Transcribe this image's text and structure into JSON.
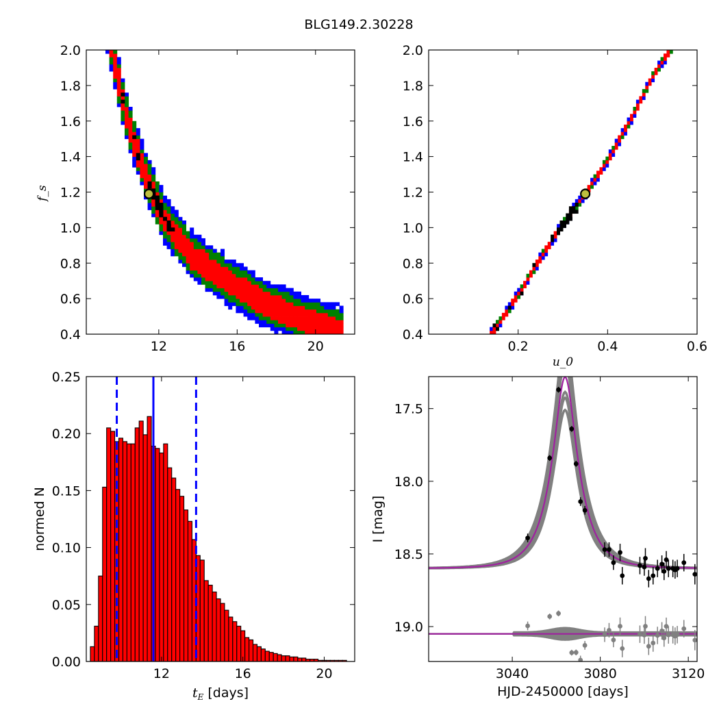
{
  "figure_title": "BLG149.2.30228",
  "colors": {
    "blue": "#0000ff",
    "green": "#008000",
    "red": "#ff0000",
    "black": "#000000",
    "marker_fill": "#bfbf3f",
    "purple": "#a020a0",
    "gray": "#808080"
  },
  "chart_data": [
    {
      "id": "fs_vs_tE",
      "type": "heatmap",
      "title": "",
      "xlabel": "",
      "ylabel": "f_s",
      "xlim": [
        8.3,
        22.0
      ],
      "ylim": [
        0.4,
        2.0
      ],
      "xticks": [
        "12",
        "16",
        "20"
      ],
      "xtick_values": [
        12,
        16,
        20
      ],
      "yticks": [
        "0.4",
        "0.6",
        "0.8",
        "1.0",
        "1.2",
        "1.4",
        "1.6",
        "1.8",
        "2.0"
      ],
      "ytick_values": [
        0.4,
        0.6,
        0.8,
        1.0,
        1.2,
        1.4,
        1.6,
        1.8,
        2.0
      ],
      "ridge_points": [
        [
          9.6,
          2.0
        ],
        [
          10.4,
          1.6
        ],
        [
          11.3,
          1.3
        ],
        [
          12.3,
          1.05
        ],
        [
          13.6,
          0.85
        ],
        [
          15.5,
          0.7
        ],
        [
          17.5,
          0.57
        ],
        [
          19.5,
          0.48
        ],
        [
          21.2,
          0.42
        ]
      ],
      "band_half_width": {
        "black": 0.045,
        "red": 0.11,
        "green": 0.17,
        "blue": 0.22
      },
      "black_center": [
        12.2,
        1.06
      ],
      "best_fit_marker": [
        11.5,
        1.19
      ]
    },
    {
      "id": "fs_vs_u0",
      "type": "heatmap",
      "title": "",
      "xlabel": "u_0",
      "ylabel": "",
      "xlim": [
        0.0,
        0.6
      ],
      "ylim": [
        0.4,
        2.0
      ],
      "xticks": [
        "0.2",
        "0.4",
        "0.6"
      ],
      "xtick_values": [
        0.2,
        0.4,
        0.6
      ],
      "yticks": [
        "0.4",
        "0.6",
        "0.8",
        "1.0",
        "1.2",
        "1.4",
        "1.6",
        "1.8",
        "2.0"
      ],
      "ytick_values": [
        0.4,
        0.6,
        0.8,
        1.0,
        1.2,
        1.4,
        1.6,
        1.8,
        2.0
      ],
      "ridge_points": [
        [
          0.145,
          0.42
        ],
        [
          0.2,
          0.62
        ],
        [
          0.25,
          0.83
        ],
        [
          0.3,
          1.02
        ],
        [
          0.35,
          1.19
        ],
        [
          0.4,
          1.38
        ],
        [
          0.45,
          1.6
        ],
        [
          0.5,
          1.85
        ],
        [
          0.54,
          2.0
        ]
      ],
      "band_half_width": {
        "black": 0.012,
        "red": 0.026,
        "green": 0.038,
        "blue": 0.05
      },
      "black_center": [
        0.31,
        0.98
      ],
      "best_fit_marker": [
        0.35,
        1.19
      ]
    },
    {
      "id": "tE_histogram",
      "type": "bar",
      "title": "",
      "xlabel": "t_E [days]",
      "ylabel": "normed N",
      "xlim": [
        8.3,
        21.5
      ],
      "ylim": [
        0.0,
        0.25
      ],
      "xticks": [
        "12",
        "16",
        "20"
      ],
      "xtick_values": [
        12,
        16,
        20
      ],
      "yticks": [
        "0.00",
        "0.05",
        "0.10",
        "0.15",
        "0.20",
        "0.25"
      ],
      "ytick_values": [
        0.0,
        0.05,
        0.1,
        0.15,
        0.2,
        0.25
      ],
      "bin_start": 8.5,
      "bin_width": 0.2,
      "values": [
        0.013,
        0.031,
        0.075,
        0.153,
        0.205,
        0.202,
        0.193,
        0.196,
        0.193,
        0.191,
        0.191,
        0.205,
        0.211,
        0.199,
        0.215,
        0.189,
        0.187,
        0.183,
        0.191,
        0.17,
        0.161,
        0.151,
        0.145,
        0.133,
        0.123,
        0.107,
        0.093,
        0.089,
        0.071,
        0.067,
        0.061,
        0.055,
        0.051,
        0.045,
        0.039,
        0.035,
        0.031,
        0.027,
        0.021,
        0.019,
        0.015,
        0.013,
        0.011,
        0.009,
        0.008,
        0.007,
        0.006,
        0.005,
        0.005,
        0.004,
        0.004,
        0.003,
        0.003,
        0.002,
        0.002,
        0.002,
        0.001,
        0.001,
        0.001,
        0.001,
        0.001,
        0.001,
        0.001
      ],
      "median_line": 11.6,
      "interval_lines": [
        9.8,
        13.7
      ],
      "bar_color": "#ff0000",
      "line_color": "#0000ff"
    },
    {
      "id": "light_curve",
      "type": "line",
      "title": "",
      "xlabel": "HJD-2450000 [days]",
      "ylabel": "I [mag]",
      "xlim": [
        3002.0,
        3124.0
      ],
      "ylim": [
        19.24,
        17.28
      ],
      "xticks": [
        "3040",
        "3080",
        "3120"
      ],
      "xtick_values": [
        3040,
        3080,
        3120
      ],
      "yticks": [
        "17.5",
        "18.0",
        "18.5",
        "19.0"
      ],
      "ytick_values": [
        17.5,
        18.0,
        18.5,
        19.0
      ],
      "model": {
        "t0": 3064.0,
        "tE": 11.5,
        "u0": 0.35,
        "fs": 1.19,
        "baseline": 18.6
      },
      "residual_baseline": 19.05,
      "data_points": [
        {
          "t": 3047.0,
          "mag": 18.39,
          "err": 0.03
        },
        {
          "t": 3057.0,
          "mag": 17.84,
          "err": 0.02
        },
        {
          "t": 3061.0,
          "mag": 17.37,
          "err": 0.02
        },
        {
          "t": 3067.0,
          "mag": 17.64,
          "err": 0.02
        },
        {
          "t": 3069.0,
          "mag": 17.88,
          "err": 0.02
        },
        {
          "t": 3071.0,
          "mag": 18.14,
          "err": 0.03
        },
        {
          "t": 3073.0,
          "mag": 18.2,
          "err": 0.03
        },
        {
          "t": 3082.0,
          "mag": 18.47,
          "err": 0.05
        },
        {
          "t": 3084.0,
          "mag": 18.47,
          "err": 0.05
        },
        {
          "t": 3086.0,
          "mag": 18.56,
          "err": 0.05
        },
        {
          "t": 3089.0,
          "mag": 18.49,
          "err": 0.06
        },
        {
          "t": 3090.0,
          "mag": 18.65,
          "err": 0.06
        },
        {
          "t": 3098.0,
          "mag": 18.58,
          "err": 0.06
        },
        {
          "t": 3100.0,
          "mag": 18.59,
          "err": 0.06
        },
        {
          "t": 3100.5,
          "mag": 18.53,
          "err": 0.07
        },
        {
          "t": 3102.0,
          "mag": 18.67,
          "err": 0.06
        },
        {
          "t": 3104.0,
          "mag": 18.65,
          "err": 0.06
        },
        {
          "t": 3106.0,
          "mag": 18.6,
          "err": 0.06
        },
        {
          "t": 3108.0,
          "mag": 18.57,
          "err": 0.06
        },
        {
          "t": 3109.0,
          "mag": 18.62,
          "err": 0.06
        },
        {
          "t": 3110.0,
          "mag": 18.54,
          "err": 0.06
        },
        {
          "t": 3111.0,
          "mag": 18.6,
          "err": 0.06
        },
        {
          "t": 3113.0,
          "mag": 18.6,
          "err": 0.06
        },
        {
          "t": 3114.0,
          "mag": 18.61,
          "err": 0.06
        },
        {
          "t": 3115.0,
          "mag": 18.6,
          "err": 0.06
        },
        {
          "t": 3118.0,
          "mag": 18.56,
          "err": 0.06
        },
        {
          "t": 3123.0,
          "mag": 18.64,
          "err": 0.07
        }
      ]
    }
  ]
}
